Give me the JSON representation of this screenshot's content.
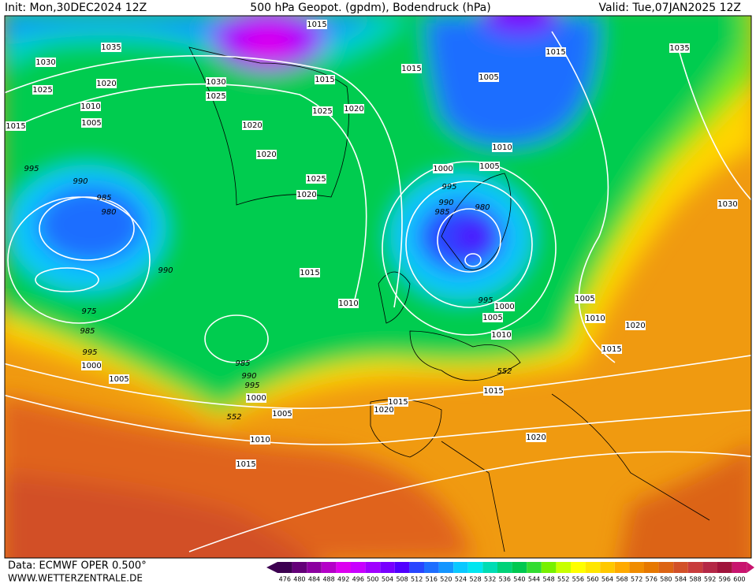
{
  "header": {
    "init": "Init: Mon,30DEC2024 12Z",
    "title": "500 hPa Geopot. (gpdm), Bodendruck (hPa)",
    "valid": "Valid: Tue,07JAN2025 12Z"
  },
  "footer": {
    "source": "Data: ECMWF OPER 0.500°",
    "site": "WWW.WETTERZENTRALE.DE"
  },
  "isobar_labels": [
    1015,
    1035,
    1030,
    1015,
    1015,
    1005,
    1015,
    1035,
    1020,
    1030,
    1025,
    1025,
    1010,
    1025,
    1020,
    1015,
    1005,
    1020,
    1010,
    1020,
    995,
    1000,
    1005,
    1025,
    990,
    995,
    1020,
    985,
    990,
    980,
    985,
    980,
    1030,
    990,
    1015,
    1010,
    995,
    1000,
    1005,
    975,
    1005,
    1010,
    1020,
    985,
    1010,
    1015,
    995,
    1000,
    985,
    552,
    990,
    1005,
    995,
    1015,
    1000,
    1015,
    1020,
    1005,
    552,
    1010,
    1020,
    1015
  ],
  "colorbar": {
    "labels": [
      476,
      480,
      484,
      488,
      492,
      496,
      500,
      504,
      508,
      512,
      516,
      520,
      524,
      528,
      532,
      536,
      540,
      544,
      548,
      552,
      556,
      560,
      564,
      568,
      572,
      576,
      580,
      584,
      588,
      592,
      596,
      600
    ],
    "colors": [
      "#3c0050",
      "#640078",
      "#8c00a0",
      "#b400c8",
      "#dc00f0",
      "#c800ff",
      "#a000ff",
      "#7800ff",
      "#5000ff",
      "#2846ff",
      "#1e6eff",
      "#1496ff",
      "#0ac8ff",
      "#00e6f0",
      "#00dcb4",
      "#00d278",
      "#00c850",
      "#32dc32",
      "#78f000",
      "#c8ff00",
      "#ffff00",
      "#ffe600",
      "#ffc800",
      "#ffaa00",
      "#f08c00",
      "#e67800",
      "#dc6414",
      "#d25028",
      "#c83c3c",
      "#b42846",
      "#a0143c",
      "#c8146e"
    ]
  }
}
